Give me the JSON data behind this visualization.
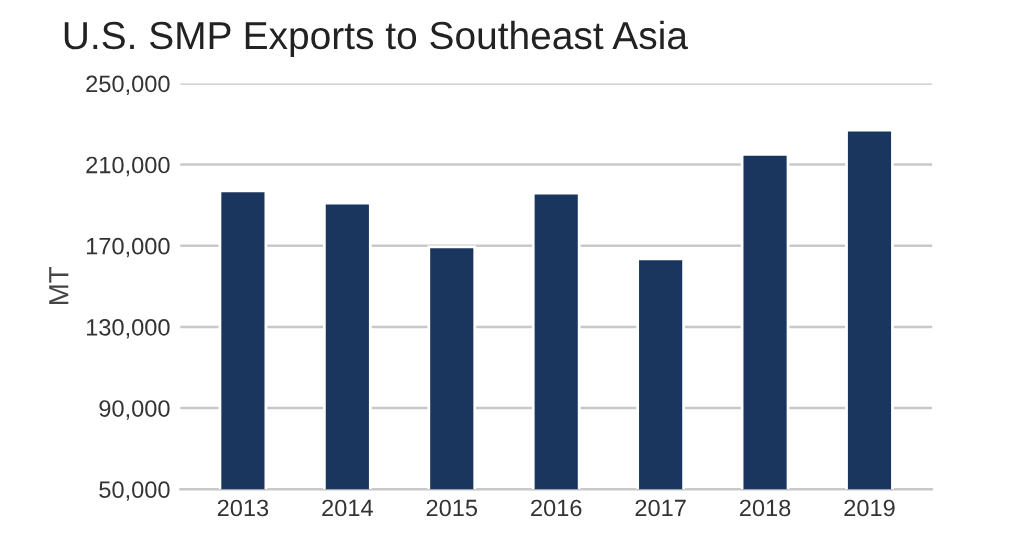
{
  "chart_data": {
    "type": "bar",
    "title": "U.S. SMP Exports to Southeast Asia",
    "ylabel": "MT",
    "categories": [
      "2013",
      "2014",
      "2015",
      "2016",
      "2017",
      "2018",
      "2019"
    ],
    "values": [
      197000,
      191000,
      169500,
      196000,
      163500,
      215000,
      227000
    ],
    "color": "#1a365f",
    "ylim": [
      50000,
      250000
    ],
    "yticks": [
      {
        "value": 50000,
        "label": "50,000"
      },
      {
        "value": 90000,
        "label": "90,000"
      },
      {
        "value": 130000,
        "label": "130,000"
      },
      {
        "value": 170000,
        "label": "170,000"
      },
      {
        "value": 210000,
        "label": "210,000"
      },
      {
        "value": 250000,
        "label": "250,000"
      }
    ],
    "grid": "y"
  }
}
